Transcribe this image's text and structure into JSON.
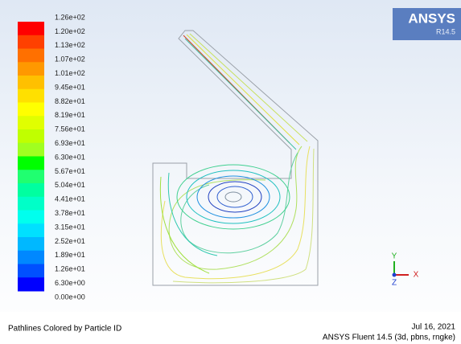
{
  "legend": {
    "labels": [
      "1.26e+02",
      "1.20e+02",
      "1.13e+02",
      "1.07e+02",
      "1.01e+02",
      "9.45e+01",
      "8.82e+01",
      "8.19e+01",
      "7.56e+01",
      "6.93e+01",
      "6.30e+01",
      "5.67e+01",
      "5.04e+01",
      "4.41e+01",
      "3.78e+01",
      "3.15e+01",
      "2.52e+01",
      "1.89e+01",
      "1.26e+01",
      "6.30e+00",
      "0.00e+00"
    ],
    "colors": [
      "#ff0000",
      "#ff4000",
      "#ff7000",
      "#ff9800",
      "#ffc000",
      "#ffe000",
      "#ffff00",
      "#e0ff00",
      "#c0ff00",
      "#a0ff20",
      "#00ff00",
      "#20ff70",
      "#00ffa0",
      "#00ffc8",
      "#00ffee",
      "#00e0ff",
      "#00b8ff",
      "#0088ff",
      "#0050ff",
      "#0000ff"
    ]
  },
  "logo": {
    "brand": "ANSYS",
    "version": "R14.5"
  },
  "triad": {
    "x": "X",
    "y": "Y",
    "z": "Z"
  },
  "footer": {
    "caption": "Pathlines Colored by Particle ID",
    "date": "Jul 16, 2021",
    "product": "ANSYS Fluent 14.5 (3d, pbns, rngke)"
  }
}
